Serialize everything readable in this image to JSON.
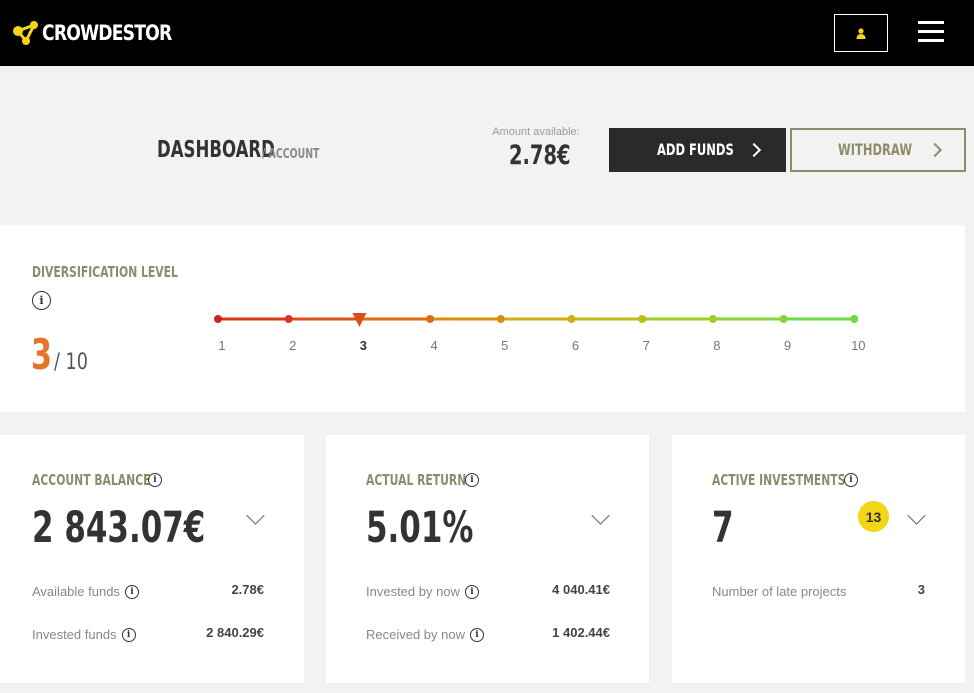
{
  "header": {
    "logo_text": "CROWDESTOR",
    "user_icon": "user-icon",
    "menu_icon": "hamburger-icon"
  },
  "page": {
    "title": "DASHBOARD",
    "breadcrumb": "/ ACCOUNT",
    "amount_label": "Amount available:",
    "amount_value": "2.78€",
    "add_funds_label": "ADD FUNDS",
    "withdraw_label": "WITHDRAW"
  },
  "diversification": {
    "title": "DIVERSIFICATION LEVEL",
    "level": "3",
    "max": "/ 10",
    "scale": [
      "1",
      "2",
      "3",
      "4",
      "5",
      "6",
      "7",
      "8",
      "9",
      "10"
    ],
    "current_index": 2,
    "colors": [
      "#d0241a",
      "#d8351a",
      "#db4f18",
      "#de6a16",
      "#d98e10",
      "#d2ad10",
      "#bfbd14",
      "#a2cd24",
      "#84d53a",
      "#6bd94a"
    ]
  },
  "cards": {
    "balance": {
      "title": "ACCOUNT BALANCE",
      "value": "2 843.07€",
      "rows": [
        {
          "label": "Available funds",
          "value": "2.78€"
        },
        {
          "label": "Invested funds",
          "value": "2 840.29€"
        }
      ]
    },
    "return": {
      "title": "ACTUAL RETURN",
      "value": "5.01%",
      "rows": [
        {
          "label": "Invested by now",
          "value": "4 040.41€"
        },
        {
          "label": "Received by now",
          "value": "1 402.44€"
        }
      ]
    },
    "investments": {
      "title": "ACTIVE INVESTMENTS",
      "value": "7",
      "badge": "13",
      "rows": [
        {
          "label": "Number of late projects",
          "value": "3"
        }
      ]
    }
  },
  "colors": {
    "olive": "#8d8d6a",
    "accent_orange": "#e8742a",
    "badge_yellow": "#f3d516",
    "header_bg": "#000000"
  }
}
